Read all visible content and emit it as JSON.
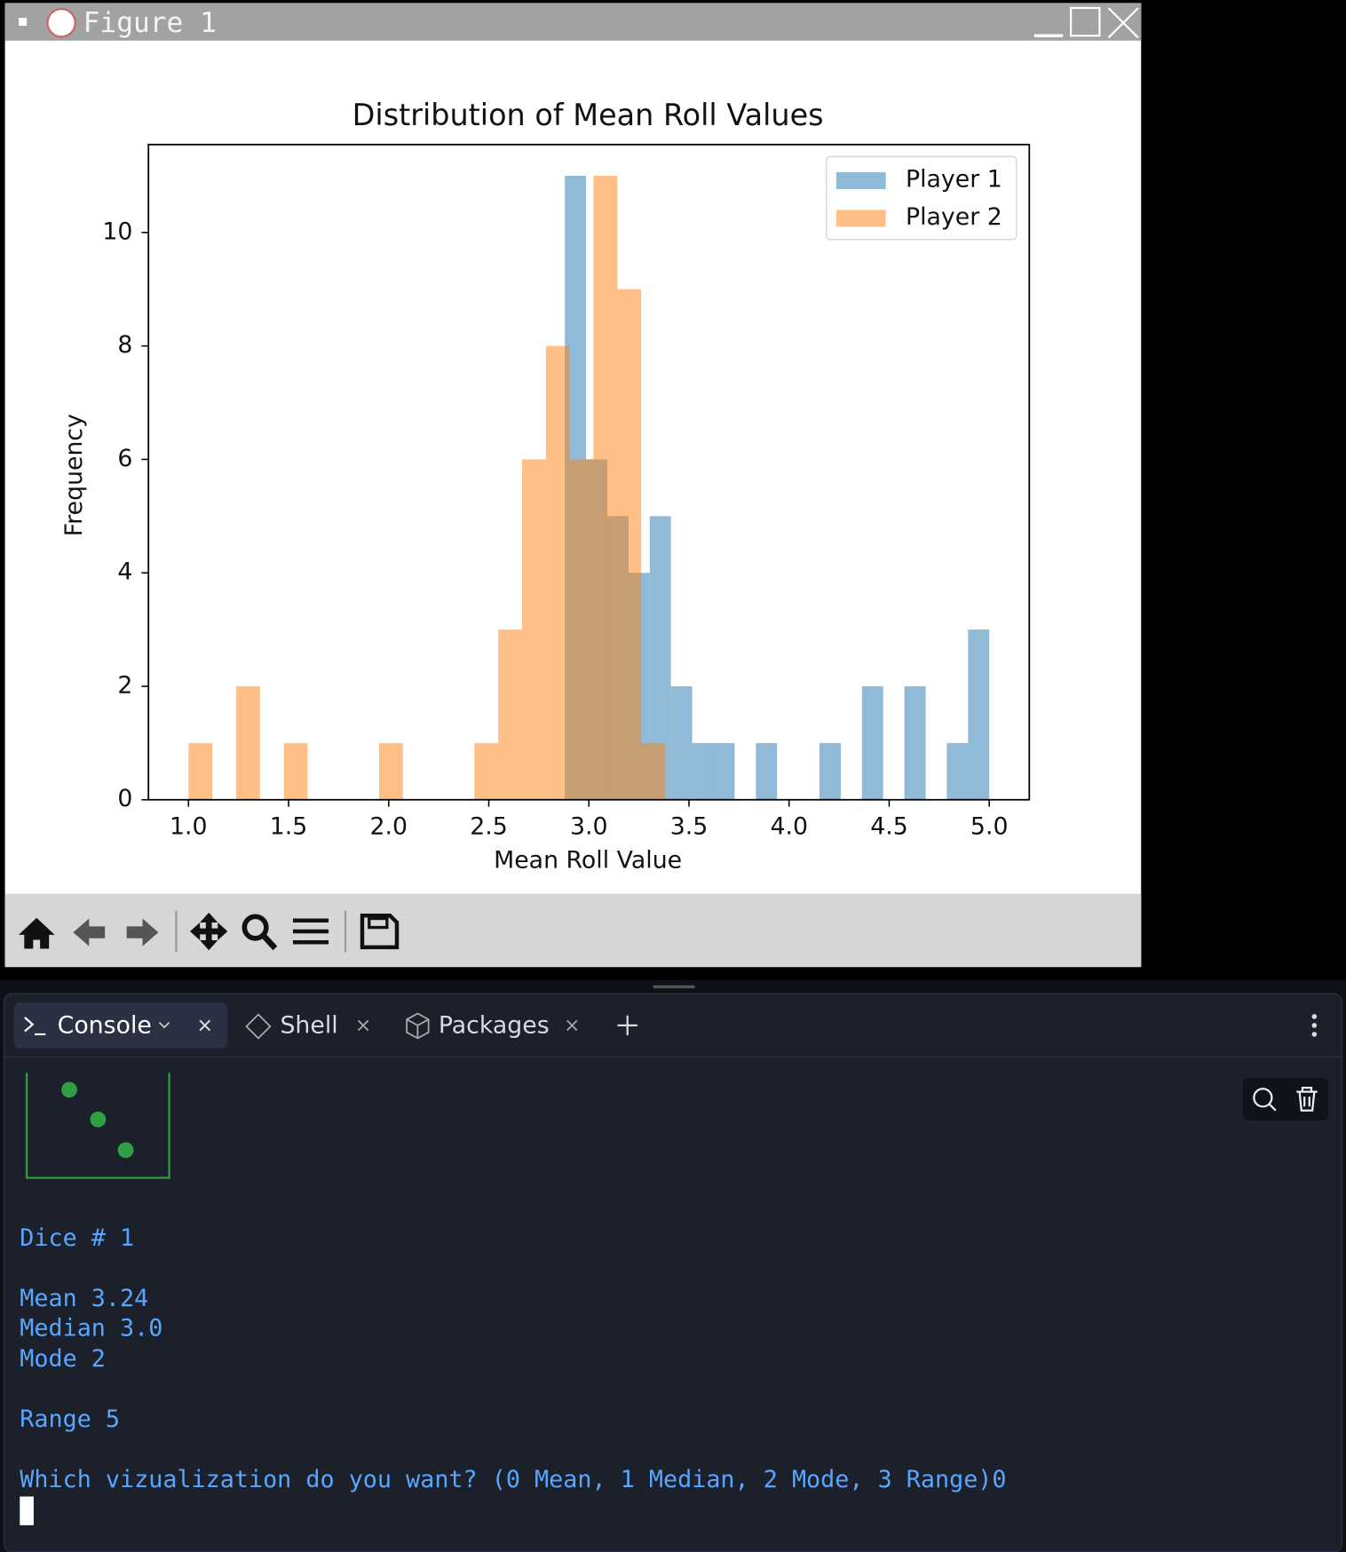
{
  "window": {
    "title": "Figure 1"
  },
  "chart_data": {
    "type": "histogram",
    "title": "Distribution of Mean Roll Values",
    "x_label": "Mean Roll Value",
    "y_label": "Frequency",
    "series": [
      {
        "name": "Player 1",
        "color": "#1f77b4",
        "alpha": 0.5,
        "bins": [
          2.88,
          2.986,
          3.092,
          3.198,
          3.304,
          3.41,
          3.516,
          3.622,
          3.728,
          3.834,
          3.94,
          4.046,
          4.152,
          4.258,
          4.364,
          4.47,
          4.576,
          4.682,
          4.788,
          4.894,
          5.0
        ],
        "values": [
          11,
          6,
          5,
          4,
          5,
          2,
          1,
          1,
          0,
          1,
          0,
          0,
          1,
          0,
          2,
          0,
          2,
          0,
          1,
          3
        ]
      },
      {
        "name": "Player 2",
        "color": "#ff7f0e",
        "alpha": 0.5,
        "bins": [
          1.0,
          1.119,
          1.238,
          1.357,
          1.476,
          1.595,
          1.714,
          1.833,
          1.952,
          2.071,
          2.19,
          2.309,
          2.428,
          2.547,
          2.666,
          2.785,
          2.904,
          3.023,
          3.142,
          3.261,
          3.38
        ],
        "values": [
          1,
          0,
          2,
          0,
          1,
          0,
          0,
          0,
          1,
          0,
          0,
          0,
          1,
          3,
          6,
          8,
          6,
          11,
          9,
          1
        ]
      }
    ],
    "xlim": [
      0.8,
      5.2
    ],
    "xticks": [
      {
        "value": 1,
        "label": "1.0"
      },
      1.5,
      {
        "value": 2,
        "label": "2.0"
      },
      2.5,
      {
        "value": 3,
        "label": "3.0"
      },
      3.5,
      {
        "value": 4,
        "label": "4.0"
      },
      4.5,
      {
        "value": 5,
        "label": "5.0"
      }
    ],
    "ylim": [
      0,
      11.55
    ],
    "yticks": [
      0,
      2,
      4,
      6,
      8,
      10
    ],
    "legend": "upper right",
    "grid": false
  },
  "console": {
    "tabs": [
      "Console",
      "Shell",
      "Packages"
    ],
    "lines": [
      "Dice # 1",
      "Mean 3.24",
      "Median 3.0",
      "Mode 2",
      "Range 5",
      "Which vizualization do you want? (0 Mean, 1 Median, 2 Mode, 3 Range)0"
    ]
  }
}
